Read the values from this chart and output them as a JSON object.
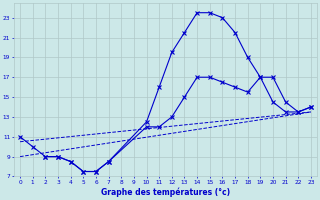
{
  "xlabel": "Graphe des températures (°c)",
  "bg_color": "#cce8e8",
  "line_color": "#0000cc",
  "grid_color": "#b0c8c8",
  "xlim": [
    -0.5,
    23.5
  ],
  "ylim": [
    7,
    24.5
  ],
  "yticks": [
    7,
    9,
    11,
    13,
    15,
    17,
    19,
    21,
    23
  ],
  "xticks": [
    0,
    1,
    2,
    3,
    4,
    5,
    6,
    7,
    8,
    9,
    10,
    11,
    12,
    13,
    14,
    15,
    16,
    17,
    18,
    19,
    20,
    21,
    22,
    23
  ],
  "line1_x": [
    0,
    1,
    2,
    3,
    4,
    5,
    6,
    7,
    10,
    11,
    12,
    13,
    14,
    15,
    16,
    17,
    18,
    19,
    20,
    21,
    22,
    23
  ],
  "line1_y": [
    11,
    10,
    9,
    9,
    8.5,
    7.5,
    7.5,
    8.5,
    12.5,
    16,
    19.5,
    21.5,
    23.5,
    23.5,
    23,
    21.5,
    19,
    17,
    14.5,
    13.5,
    13.5,
    14
  ],
  "line2_x": [
    2,
    3,
    4,
    5,
    6,
    7,
    10,
    11,
    12,
    13,
    14,
    15,
    16,
    17,
    18,
    19,
    20,
    21,
    22,
    23
  ],
  "line2_y": [
    9,
    9,
    8.5,
    7.5,
    7.5,
    8.5,
    12,
    12,
    13,
    15,
    17,
    17,
    16.5,
    16,
    15.5,
    17,
    17,
    14.5,
    13.5,
    14
  ],
  "line3_x": [
    0,
    23
  ],
  "line3_y": [
    10.5,
    13.5
  ],
  "line4_x": [
    0,
    23
  ],
  "line4_y": [
    9.0,
    13.5
  ]
}
